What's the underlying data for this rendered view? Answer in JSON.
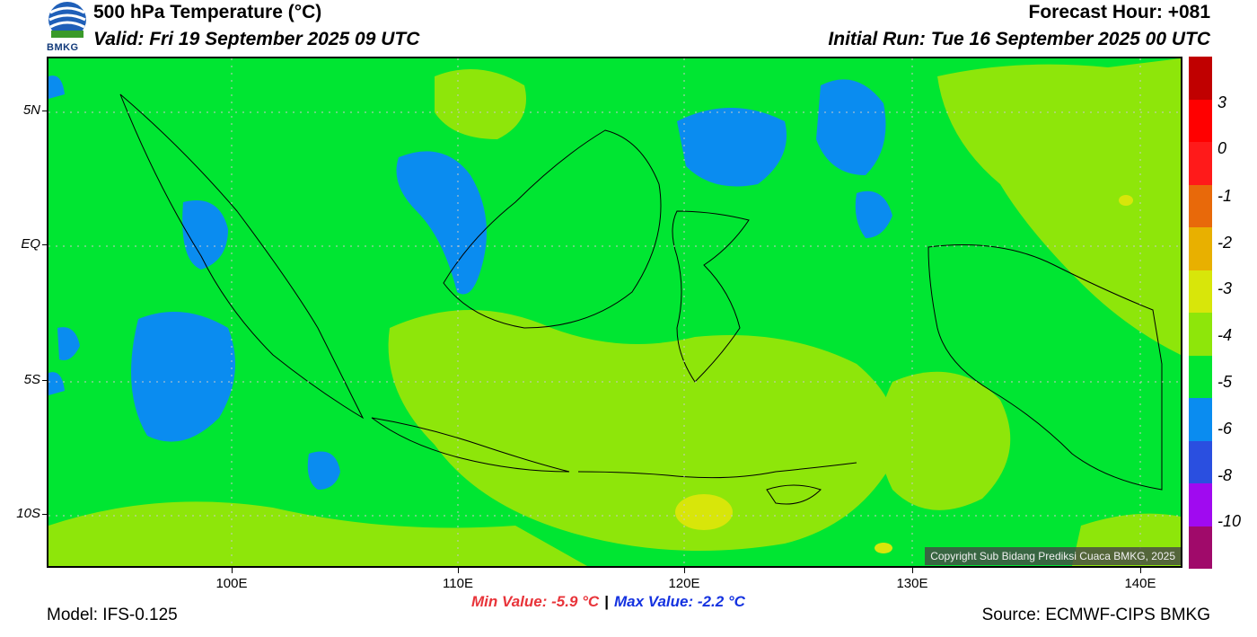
{
  "header": {
    "title": "500 hPa Temperature (°C)",
    "valid": "Valid: Fri 19 September 2025 09 UTC",
    "forecast_hour": "Forecast Hour: +081",
    "initial_run": "Initial Run: Tue 16 September 2025 00 UTC",
    "logo_text": "BMKG"
  },
  "map": {
    "lat_labels": [
      "5N",
      "EQ",
      "5S",
      "10S"
    ],
    "lon_labels": [
      "100E",
      "110E",
      "120E",
      "130E",
      "140E"
    ],
    "copyright": "Copyright Sub Bidang Prediksi Cuaca BMKG, 2025"
  },
  "colorbar": {
    "labels": [
      "3",
      "0",
      "-1",
      "-2",
      "-3",
      "-4",
      "-5",
      "-6",
      "-8",
      "-10"
    ],
    "colors": [
      "#c00000",
      "#ff0000",
      "#ff1a1a",
      "#e8690a",
      "#e8b000",
      "#d8e60a",
      "#8ee60a",
      "#00e632",
      "#0a8cf0",
      "#2a4fe0",
      "#a00af0",
      "#a00a6a"
    ]
  },
  "footer": {
    "min_value": "Min Value: -5.9 °C",
    "max_value": "Max Value: -2.2 °C",
    "separator": "|",
    "model": "Model: IFS-0.125",
    "source": "Source: ECMWF-CIPS BMKG"
  }
}
